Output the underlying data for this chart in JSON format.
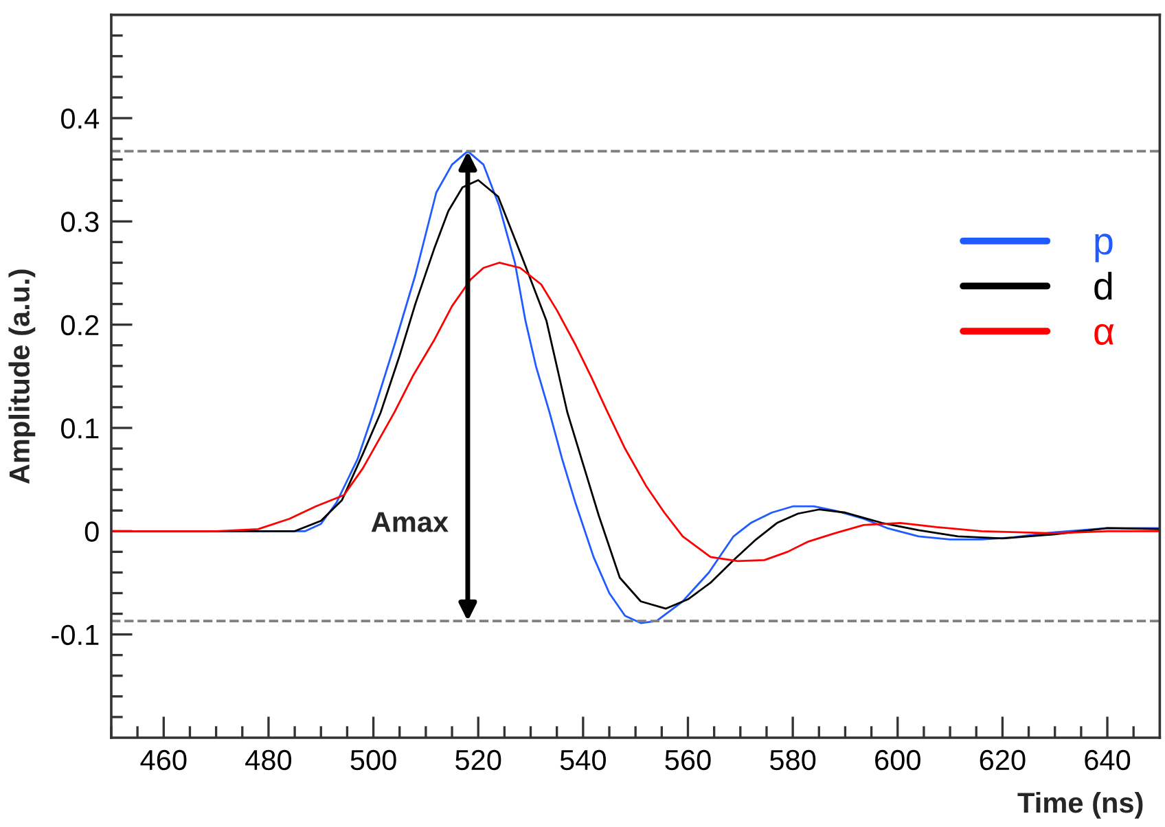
{
  "chart_data": {
    "type": "line",
    "xlabel": "Time (ns)",
    "ylabel": "Amplitude (a.u.)",
    "xlim": [
      450,
      650
    ],
    "ylim": [
      -0.2,
      0.5
    ],
    "xticks": [
      {
        "value": 450,
        "label": null
      },
      {
        "value": 455,
        "label": null
      },
      460,
      {
        "value": 465,
        "label": null
      },
      {
        "value": 470,
        "label": null
      },
      {
        "value": 475,
        "label": null
      },
      480,
      {
        "value": 485,
        "label": null
      },
      {
        "value": 490,
        "label": null
      },
      {
        "value": 495,
        "label": null
      },
      500,
      {
        "value": 505,
        "label": null
      },
      {
        "value": 510,
        "label": null
      },
      {
        "value": 515,
        "label": null
      },
      520,
      {
        "value": 525,
        "label": null
      },
      {
        "value": 530,
        "label": null
      },
      {
        "value": 535,
        "label": null
      },
      540,
      {
        "value": 545,
        "label": null
      },
      {
        "value": 550,
        "label": null
      },
      {
        "value": 555,
        "label": null
      },
      560,
      {
        "value": 565,
        "label": null
      },
      {
        "value": 570,
        "label": null
      },
      {
        "value": 575,
        "label": null
      },
      580,
      {
        "value": 585,
        "label": null
      },
      {
        "value": 590,
        "label": null
      },
      {
        "value": 595,
        "label": null
      },
      600,
      {
        "value": 605,
        "label": null
      },
      {
        "value": 610,
        "label": null
      },
      {
        "value": 615,
        "label": null
      },
      620,
      {
        "value": 625,
        "label": null
      },
      {
        "value": 630,
        "label": null
      },
      {
        "value": 635,
        "label": null
      },
      640,
      {
        "value": 645,
        "label": null
      }
    ],
    "yticks": [
      {
        "value": -0.18,
        "label": null
      },
      {
        "value": -0.16,
        "label": null
      },
      {
        "value": -0.14,
        "label": null
      },
      {
        "value": -0.12,
        "label": null
      },
      -0.1,
      {
        "value": -0.08,
        "label": null
      },
      {
        "value": -0.06,
        "label": null
      },
      {
        "value": -0.04,
        "label": null
      },
      {
        "value": -0.02,
        "label": null
      },
      0,
      {
        "value": 0.02,
        "label": null
      },
      {
        "value": 0.04,
        "label": null
      },
      {
        "value": 0.06,
        "label": null
      },
      {
        "value": 0.08,
        "label": null
      },
      0.1,
      {
        "value": 0.12,
        "label": null
      },
      {
        "value": 0.14,
        "label": null
      },
      {
        "value": 0.16,
        "label": null
      },
      {
        "value": 0.18,
        "label": null
      },
      0.2,
      {
        "value": 0.22,
        "label": null
      },
      {
        "value": 0.24,
        "label": null
      },
      {
        "value": 0.26,
        "label": null
      },
      {
        "value": 0.28,
        "label": null
      },
      0.3,
      {
        "value": 0.32,
        "label": null
      },
      {
        "value": 0.34,
        "label": null
      },
      {
        "value": 0.36,
        "label": null
      },
      {
        "value": 0.38,
        "label": null
      },
      0.4,
      {
        "value": 0.42,
        "label": null
      },
      {
        "value": 0.44,
        "label": null
      },
      {
        "value": 0.46,
        "label": null
      },
      {
        "value": 0.48,
        "label": null
      }
    ],
    "grid": false,
    "legend": "right",
    "line_style": "solid",
    "marker": "none",
    "ref_lines": [
      {
        "axis": "y",
        "value": 0.368,
        "color": "#808080",
        "line_style": "dashed"
      },
      {
        "axis": "y",
        "value": -0.087,
        "color": "#808080",
        "line_style": "dashed"
      }
    ],
    "annotations": [
      "Amax"
    ],
    "series": [
      {
        "name": "p",
        "color": "#1f5bff",
        "x": [
          450,
          470,
          487,
          490,
          493,
          497,
          500,
          504,
          508,
          512,
          515,
          518,
          521,
          524,
          527,
          529,
          531,
          533.6,
          536,
          538.5,
          542,
          545,
          548,
          551,
          554,
          559,
          564,
          568.7,
          572,
          576,
          580,
          584,
          588,
          593.5,
          598,
          604,
          610,
          616,
          622,
          630,
          640,
          650
        ],
        "values": [
          0,
          0,
          0,
          0.007,
          0.028,
          0.07,
          0.115,
          0.18,
          0.248,
          0.328,
          0.355,
          0.368,
          0.355,
          0.315,
          0.26,
          0.204,
          0.16,
          0.115,
          0.07,
          0.028,
          -0.025,
          -0.06,
          -0.082,
          -0.089,
          -0.087,
          -0.068,
          -0.04,
          -0.005,
          0.008,
          0.018,
          0.024,
          0.024,
          0.02,
          0.012,
          0.003,
          -0.005,
          -0.008,
          -0.008,
          -0.006,
          -0.001,
          0.003,
          0.003
        ]
      },
      {
        "name": "d",
        "color": "#000000",
        "x": [
          450,
          470,
          485,
          490,
          494,
          498,
          501.4,
          505,
          508,
          511.7,
          514.3,
          517,
          520,
          523.8,
          528,
          533,
          537,
          540,
          543,
          547,
          551,
          555.8,
          560,
          564.3,
          568.7,
          573,
          577,
          581,
          585,
          590,
          597,
          604,
          611.5,
          620,
          630,
          640,
          650
        ],
        "values": [
          0,
          0,
          0,
          0.01,
          0.03,
          0.075,
          0.115,
          0.17,
          0.22,
          0.275,
          0.31,
          0.333,
          0.34,
          0.324,
          0.27,
          0.204,
          0.115,
          0.065,
          0.015,
          -0.045,
          -0.068,
          -0.075,
          -0.066,
          -0.05,
          -0.028,
          -0.008,
          0.008,
          0.017,
          0.021,
          0.018,
          0.008,
          0.001,
          -0.005,
          -0.007,
          -0.003,
          0.003,
          0.002
        ]
      },
      {
        "name": "α",
        "color": "#ff0000",
        "x": [
          450,
          470,
          478,
          484,
          489,
          494.4,
          498,
          504,
          507.5,
          511.7,
          515,
          518.6,
          521,
          524,
          528,
          532,
          535,
          538.5,
          541.5,
          544.5,
          548,
          552,
          555.5,
          559,
          564.3,
          569.5,
          574.6,
          579,
          583,
          588,
          593.5,
          600.5,
          607.4,
          616,
          630,
          640,
          650
        ],
        "values": [
          0,
          0,
          0.002,
          0.012,
          0.024,
          0.035,
          0.061,
          0.115,
          0.15,
          0.186,
          0.218,
          0.244,
          0.255,
          0.26,
          0.255,
          0.239,
          0.214,
          0.181,
          0.15,
          0.117,
          0.08,
          0.044,
          0.018,
          -0.005,
          -0.025,
          -0.029,
          -0.028,
          -0.02,
          -0.01,
          -0.002,
          0.006,
          0.008,
          0.004,
          0,
          -0.002,
          0,
          0
        ]
      }
    ]
  }
}
